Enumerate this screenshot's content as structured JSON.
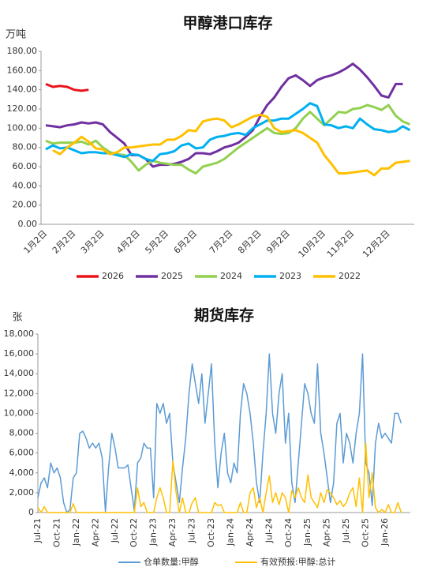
{
  "chart_data": [
    {
      "type": "line",
      "title": "甲醇港口库存",
      "y_label": "万吨",
      "categories": [
        "1月2日",
        null,
        null,
        null,
        "2月2日",
        null,
        null,
        null,
        "3月2日",
        null,
        null,
        null,
        null,
        "4月2日",
        null,
        null,
        null,
        "5月2日",
        null,
        null,
        null,
        "6月2日",
        null,
        null,
        null,
        null,
        "7月2日",
        null,
        null,
        null,
        "8月2日",
        null,
        null,
        null,
        "9月2日",
        null,
        null,
        null,
        null,
        "10月2日",
        null,
        null,
        null,
        "11月2日",
        null,
        null,
        null,
        null,
        "12月2日",
        null,
        null,
        null
      ],
      "ylim": [
        0,
        180
      ],
      "yticks": [
        {
          "value": 0,
          "label": "0.00"
        },
        {
          "value": 20,
          "label": "20.00"
        },
        {
          "value": 40,
          "label": "40.00"
        },
        {
          "value": 60,
          "label": "60.00"
        },
        {
          "value": 80,
          "label": "80.00"
        },
        {
          "value": 100,
          "label": "100.00"
        },
        {
          "value": 120,
          "label": "120.00"
        },
        {
          "value": 140,
          "label": "140.00"
        },
        {
          "value": 160,
          "label": "160.00"
        },
        {
          "value": 180,
          "label": "180.00"
        }
      ],
      "grid": false,
      "legend": "bottom",
      "series": [
        {
          "name": "2026",
          "color": "#e8141a",
          "values": [
            146,
            143,
            144,
            143,
            140,
            139,
            140,
            null,
            null,
            null,
            null,
            null,
            null,
            null,
            null,
            null,
            null,
            null,
            null,
            null,
            null,
            null,
            null,
            null,
            null,
            null,
            null,
            null,
            null,
            null,
            null,
            null,
            null,
            null,
            null,
            null,
            null,
            null,
            null,
            null,
            null,
            null,
            null,
            null,
            null,
            null,
            null,
            null,
            null,
            null,
            null,
            null
          ]
        },
        {
          "name": "2025",
          "color": "#7030a0",
          "values": [
            103,
            102,
            101,
            103,
            104,
            106,
            105,
            106,
            104,
            96,
            90,
            84,
            72,
            72,
            68,
            60,
            62,
            62,
            63,
            65,
            68,
            74,
            74,
            73,
            76,
            80,
            82,
            85,
            91,
            98,
            112,
            124,
            132,
            143,
            152,
            155,
            150,
            144,
            150,
            153,
            155,
            158,
            162,
            167,
            161,
            153,
            144,
            134,
            132,
            146,
            146,
            null
          ]
        },
        {
          "name": "2024",
          "color": "#92d050",
          "values": [
            87,
            84,
            85,
            85,
            85,
            86,
            83,
            87,
            80,
            75,
            73,
            72,
            65,
            56,
            62,
            66,
            64,
            63,
            62,
            62,
            57,
            53,
            60,
            62,
            64,
            68,
            74,
            80,
            85,
            90,
            95,
            100,
            95,
            94,
            95,
            100,
            110,
            117,
            110,
            103,
            110,
            117,
            116,
            120,
            121,
            124,
            122,
            119,
            124,
            113,
            107,
            104
          ]
        },
        {
          "name": "2023",
          "color": "#00b0f0",
          "values": [
            78,
            82,
            79,
            80,
            77,
            74,
            75,
            75,
            74,
            74,
            72,
            70,
            73,
            72,
            68,
            66,
            73,
            74,
            76,
            82,
            84,
            79,
            80,
            88,
            91,
            92,
            94,
            95,
            93,
            100,
            104,
            108,
            108,
            110,
            110,
            115,
            120,
            126,
            123,
            104,
            103,
            100,
            102,
            100,
            110,
            104,
            99,
            98,
            96,
            97,
            102,
            98
          ]
        },
        {
          "name": "2022",
          "color": "#ffc000",
          "values": [
            null,
            77,
            73,
            80,
            85,
            91,
            86,
            79,
            78,
            73,
            75,
            80,
            80,
            81,
            82,
            83,
            83,
            88,
            88,
            92,
            98,
            97,
            107,
            109,
            110,
            108,
            101,
            104,
            108,
            112,
            114,
            112,
            100,
            96,
            97,
            98,
            95,
            90,
            85,
            72,
            63,
            53,
            53,
            54,
            55,
            56,
            51,
            58,
            58,
            64,
            65,
            66
          ]
        }
      ]
    },
    {
      "type": "line",
      "title": "期货库存",
      "y_label": "张",
      "categories": [
        "Jul-21",
        null,
        null,
        null,
        null,
        null,
        "Oct-21",
        null,
        null,
        null,
        null,
        null,
        "Jan-22",
        null,
        null,
        null,
        null,
        null,
        "Apr-22",
        null,
        null,
        null,
        null,
        null,
        "Jul-22",
        null,
        null,
        null,
        null,
        null,
        "Oct-22",
        null,
        null,
        null,
        null,
        null,
        "Jan-23",
        null,
        null,
        null,
        null,
        null,
        "Apr-23",
        null,
        null,
        null,
        null,
        null,
        "Jul-23",
        null,
        null,
        null,
        null,
        null,
        "Oct-23",
        null,
        null,
        null,
        null,
        null,
        "Jan-24",
        null,
        null,
        null,
        null,
        null,
        "Apr-24",
        null,
        null,
        null,
        null,
        null,
        "Jul-24",
        null,
        null,
        null,
        null,
        null,
        "Oct-24",
        null,
        null,
        null,
        null,
        null,
        "Jan-25",
        null,
        null,
        null,
        null,
        null,
        "Apr-25",
        null,
        null,
        null,
        null,
        null,
        "Jul-25",
        null,
        null,
        null,
        null,
        null,
        "Oct-25",
        null,
        null,
        null,
        null,
        null,
        "Jan-26",
        null,
        null,
        null,
        null,
        null
      ],
      "ylim": [
        0,
        18000
      ],
      "yticks": [
        0,
        {
          "value": 2000,
          "label": "2,000"
        },
        {
          "value": 4000,
          "label": "4,000"
        },
        {
          "value": 6000,
          "label": "6,000"
        },
        {
          "value": 8000,
          "label": "8,000"
        },
        {
          "value": 10000,
          "label": "10,000"
        },
        {
          "value": 12000,
          "label": "12,000"
        },
        {
          "value": 14000,
          "label": "14,000"
        },
        {
          "value": 16000,
          "label": "16,000"
        },
        {
          "value": 18000,
          "label": "18,000"
        }
      ],
      "grid": false,
      "legend": "bottom",
      "series": [
        {
          "name": "仓单数量:甲醇",
          "color": "#5b9bd5",
          "values": [
            1500,
            3000,
            3500,
            2500,
            5000,
            4000,
            4500,
            3500,
            1000,
            0,
            300,
            3500,
            4000,
            8000,
            8200,
            7500,
            6500,
            7000,
            6500,
            7000,
            5500,
            100,
            4500,
            8000,
            6500,
            4500,
            4500,
            4500,
            4800,
            2500,
            200,
            5000,
            5500,
            7000,
            6500,
            6500,
            1500,
            11000,
            10000,
            11000,
            9000,
            10000,
            5000,
            3000,
            1000,
            4500,
            7500,
            12000,
            15000,
            13000,
            11000,
            14000,
            9000,
            12000,
            15000,
            7000,
            2500,
            6000,
            8000,
            4000,
            3000,
            5000,
            4000,
            10000,
            13000,
            12000,
            10000,
            7000,
            3000,
            1000,
            6000,
            10000,
            16000,
            10000,
            8000,
            12000,
            14000,
            7000,
            10000,
            3000,
            1000,
            5000,
            9000,
            13000,
            12000,
            10000,
            9000,
            15000,
            8000,
            6000,
            3500,
            1000,
            3000,
            9000,
            10000,
            5000,
            8000,
            7000,
            5000,
            8000,
            10000,
            16000,
            5000,
            4000,
            700,
            7000,
            9000,
            7500,
            8000,
            7500,
            7000,
            10000,
            10000,
            9000
          ]
        },
        {
          "name": "有效预报:甲醇:总计",
          "color": "#ffc000",
          "values": [
            500,
            0,
            600,
            0,
            0,
            0,
            0,
            0,
            0,
            0,
            0,
            900,
            0,
            0,
            0,
            0,
            0,
            0,
            0,
            0,
            0,
            0,
            0,
            0,
            0,
            0,
            0,
            0,
            0,
            0,
            0,
            2500,
            600,
            1000,
            0,
            0,
            0,
            1500,
            2500,
            1500,
            0,
            0,
            5200,
            2000,
            0,
            1500,
            0,
            0,
            1000,
            1500,
            0,
            0,
            0,
            0,
            0,
            1000,
            700,
            800,
            0,
            0,
            0,
            0,
            0,
            1000,
            0,
            0,
            2000,
            2500,
            500,
            1500,
            0,
            2000,
            3700,
            1000,
            2000,
            800,
            2000,
            1500,
            0,
            2200,
            1500,
            2500,
            1500,
            1000,
            3800,
            1500,
            1000,
            500,
            2000,
            1000,
            2300,
            2000,
            1500,
            800,
            1200,
            600,
            1000,
            2000,
            2500,
            600,
            3500,
            0,
            7000,
            1500,
            4000,
            500,
            0,
            300,
            0,
            800,
            0,
            0,
            1000,
            0
          ]
        }
      ]
    }
  ]
}
